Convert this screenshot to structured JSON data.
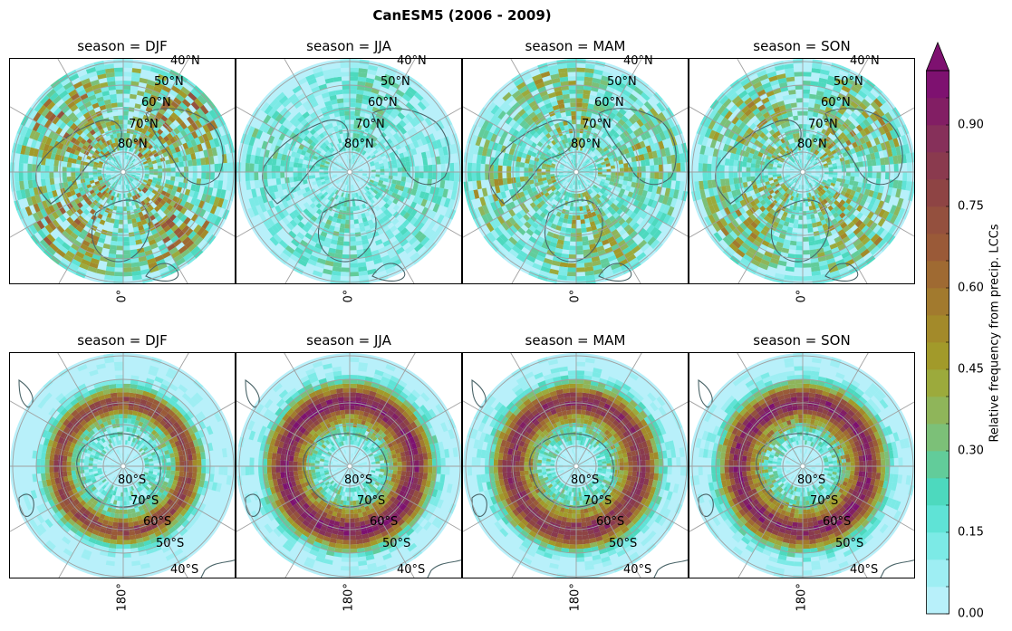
{
  "figure": {
    "title": "CanESM5 (2006 - 2009)"
  },
  "rows": [
    {
      "hemisphere": "north",
      "meridian_label": "0°",
      "lat_labels": [
        "40°N",
        "50°N",
        "60°N",
        "70°N",
        "80°N"
      ],
      "panels": [
        {
          "title": "season = DJF"
        },
        {
          "title": "season = JJA"
        },
        {
          "title": "season = MAM"
        },
        {
          "title": "season = SON"
        }
      ]
    },
    {
      "hemisphere": "south",
      "meridian_label": "180°",
      "lat_labels": [
        "80°S",
        "70°S",
        "60°S",
        "50°S",
        "40°S"
      ],
      "panels": [
        {
          "title": "season = DJF"
        },
        {
          "title": "season = JJA"
        },
        {
          "title": "season = MAM"
        },
        {
          "title": "season = SON"
        }
      ]
    }
  ],
  "colorbar": {
    "label": "Relative frequency from precip. LCCs",
    "min": 0.0,
    "max": 1.0,
    "levels": 20,
    "extend": "max",
    "tick_labels": [
      "0.00",
      "0.15",
      "0.30",
      "0.45",
      "0.60",
      "0.75",
      "0.90"
    ],
    "tick_values": [
      0.0,
      0.15,
      0.3,
      0.45,
      0.6,
      0.75,
      0.9
    ],
    "colors": [
      "#b8f0fa",
      "#9eeef3",
      "#7ceae6",
      "#5fe3d6",
      "#4dd9be",
      "#62cc9a",
      "#7cc078",
      "#8fb55a",
      "#9caa3c",
      "#a29a2a",
      "#a38a2a",
      "#a27a2e",
      "#9f6a32",
      "#9a5a38",
      "#94503e",
      "#8e4444",
      "#8a3a4e",
      "#86305a",
      "#821e64",
      "#7e1170"
    ]
  }
}
